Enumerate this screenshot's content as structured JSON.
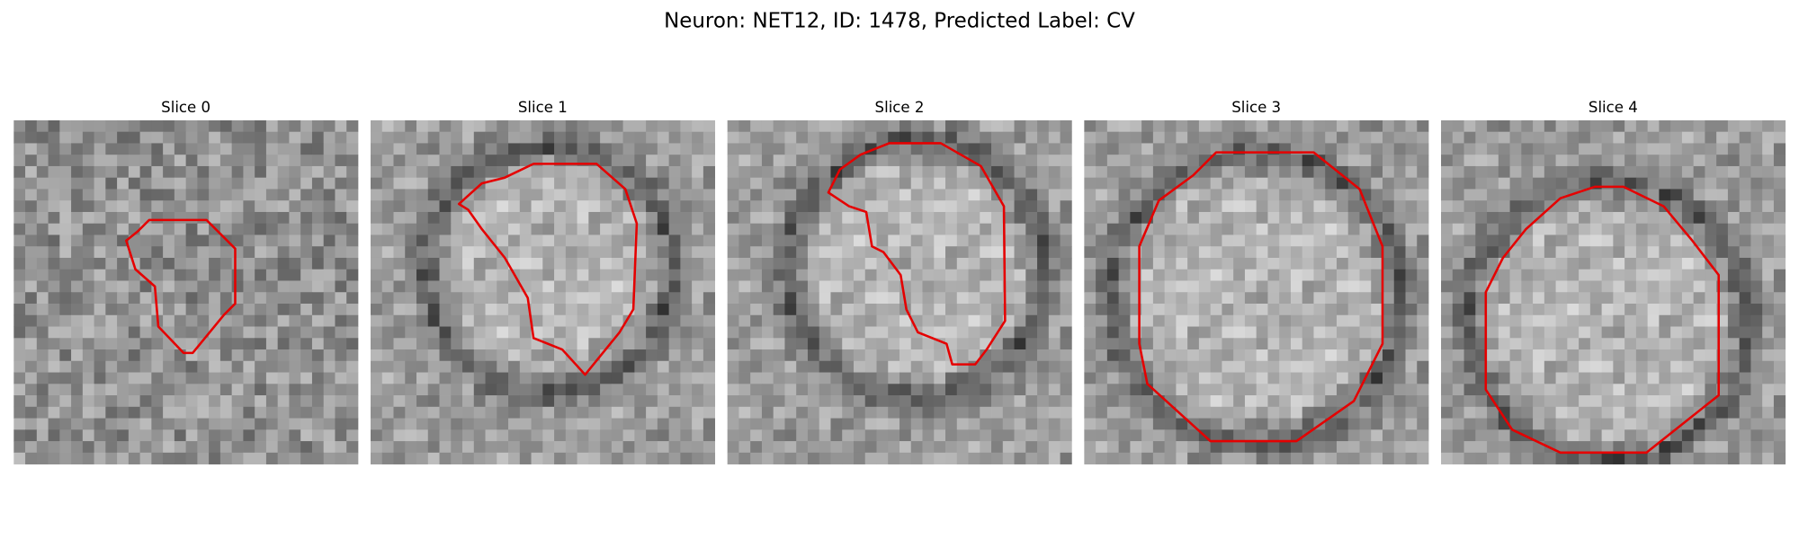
{
  "title": "Neuron: NET12, ID: 1478, Predicted Label: CV",
  "panels": [
    {
      "title": "Slice 0"
    },
    {
      "title": "Slice 1"
    },
    {
      "title": "Slice 2"
    },
    {
      "title": "Slice 3"
    },
    {
      "title": "Slice 4"
    }
  ]
}
